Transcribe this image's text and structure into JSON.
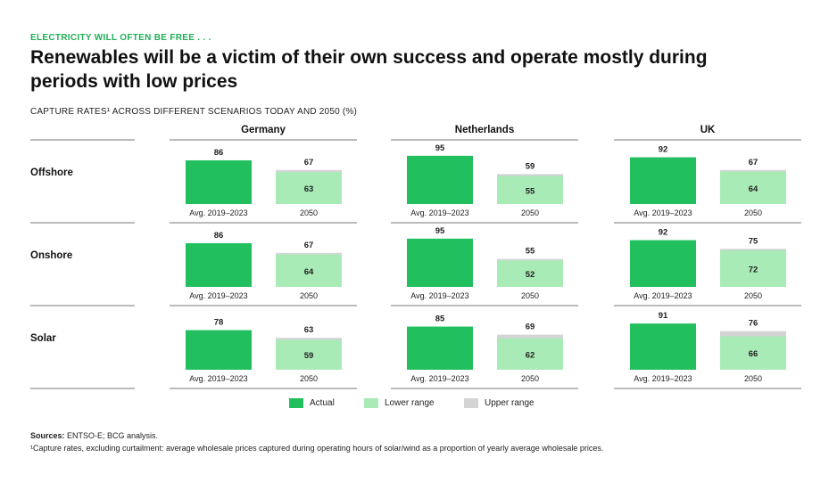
{
  "header": {
    "eyebrow": "ELECTRICITY WILL OFTEN BE FREE . . .",
    "title": "Renewables will be a victim of their own success and operate mostly during periods with low prices",
    "subtitle": "CAPTURE RATES¹ ACROSS DIFFERENT SCENARIOS TODAY AND 2050 (%)"
  },
  "legend": {
    "actual": "Actual",
    "lower": "Lower range",
    "upper": "Upper range"
  },
  "colors": {
    "actual": "#21bf5e",
    "lower": "#a9ebb7",
    "upper": "#d4d4d4"
  },
  "footer": {
    "sources_label": "Sources:",
    "sources_text": " ENTSO-E; BCG analysis.",
    "footnote": "¹Capture rates, excluding curtailment: average wholesale prices captured during operating hours of solar/wind as a proportion of yearly average wholesale prices."
  },
  "chart_data": {
    "type": "bar",
    "countries": [
      "Germany",
      "Netherlands",
      "UK"
    ],
    "technologies": [
      "Offshore",
      "Onshore",
      "Solar"
    ],
    "categories": [
      "Avg. 2019–2023",
      "2050"
    ],
    "series": [
      {
        "name": "Actual",
        "values": {
          "Germany": {
            "Offshore": 86,
            "Onshore": 86,
            "Solar": 78
          },
          "Netherlands": {
            "Offshore": 95,
            "Onshore": 95,
            "Solar": 85
          },
          "UK": {
            "Offshore": 92,
            "Onshore": 92,
            "Solar": 91
          }
        }
      },
      {
        "name": "Lower range",
        "values": {
          "Germany": {
            "Offshore": 63,
            "Onshore": 64,
            "Solar": 59
          },
          "Netherlands": {
            "Offshore": 55,
            "Onshore": 52,
            "Solar": 62
          },
          "UK": {
            "Offshore": 64,
            "Onshore": 72,
            "Solar": 66
          }
        }
      },
      {
        "name": "Upper range",
        "values": {
          "Germany": {
            "Offshore": 67,
            "Onshore": 67,
            "Solar": 63
          },
          "Netherlands": {
            "Offshore": 59,
            "Onshore": 55,
            "Solar": 69
          },
          "UK": {
            "Offshore": 67,
            "Onshore": 75,
            "Solar": 76
          }
        }
      }
    ]
  }
}
